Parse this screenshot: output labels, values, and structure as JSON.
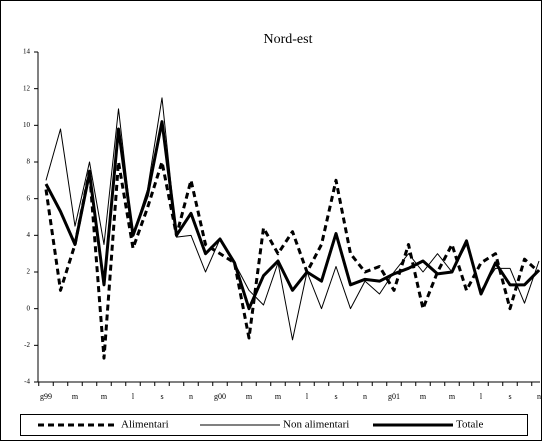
{
  "chart_data": {
    "type": "line",
    "title": "Nord-est",
    "categories": [
      "g99",
      null,
      "m",
      null,
      "m",
      null,
      "l",
      null,
      "s",
      null,
      "n",
      null,
      "g00",
      null,
      "m",
      null,
      "m",
      null,
      "l",
      null,
      "s",
      null,
      "n",
      null,
      "g01",
      null,
      "m",
      null,
      "m",
      null,
      "l",
      null,
      "s",
      null,
      "n"
    ],
    "series": [
      {
        "name": "Alimentari",
        "color": "#000000",
        "line_style": "dashed",
        "values": [
          6.5,
          1.0,
          3.5,
          7.5,
          -2.7,
          8.0,
          3.3,
          5.5,
          8.0,
          4.0,
          7.0,
          3.5,
          3.0,
          2.5,
          -1.6,
          4.4,
          3.0,
          4.2,
          2.0,
          3.5,
          7.0,
          3.0,
          2.0,
          2.3,
          1.0,
          3.5,
          0.0,
          2.0,
          3.5,
          1.0,
          2.5,
          3.0,
          0.0,
          2.7,
          2.0
        ]
      },
      {
        "name": "Non alimentari",
        "color": "#000000",
        "line_style": "thin",
        "values": [
          7.0,
          9.8,
          4.5,
          8.0,
          3.5,
          10.9,
          4.0,
          6.5,
          11.5,
          3.9,
          4.0,
          2.0,
          3.8,
          2.5,
          1.0,
          0.2,
          2.5,
          -1.7,
          2.0,
          0.0,
          2.3,
          0.0,
          1.5,
          0.8,
          2.0,
          3.0,
          2.0,
          3.0,
          2.0,
          3.5,
          1.0,
          2.2,
          2.2,
          0.3,
          2.6
        ]
      },
      {
        "name": "Totale",
        "color": "#000000",
        "line_style": "bold",
        "values": [
          6.8,
          5.3,
          3.5,
          7.4,
          1.3,
          9.8,
          4.0,
          6.2,
          10.2,
          4.0,
          5.2,
          3.0,
          3.8,
          2.5,
          0.0,
          1.8,
          2.6,
          1.0,
          2.0,
          1.5,
          4.1,
          1.3,
          1.6,
          1.5,
          1.9,
          2.2,
          2.6,
          1.9,
          2.0,
          3.7,
          0.8,
          2.5,
          1.3,
          1.3,
          2.1
        ]
      }
    ],
    "ylim": [
      -4,
      14
    ],
    "yticks": [
      -4,
      -2,
      0,
      2,
      4,
      6,
      8,
      10,
      12,
      14
    ],
    "grid": false
  }
}
